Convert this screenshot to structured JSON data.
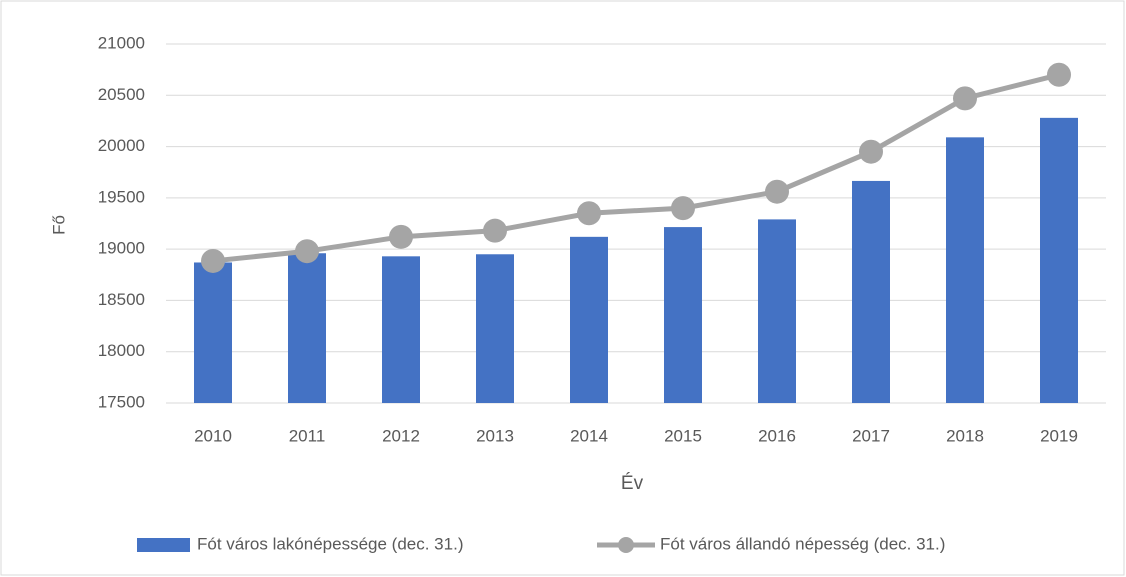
{
  "chart_data": {
    "type": "combo",
    "x_label": "Év",
    "y_label": "Fő",
    "categories": [
      "2010",
      "2011",
      "2012",
      "2013",
      "2014",
      "2015",
      "2016",
      "2017",
      "2018",
      "2019"
    ],
    "series": [
      {
        "name": "Fót város lakónépessége  (dec. 31.)",
        "type": "bar",
        "color": "#4472c4",
        "values": [
          18870,
          18960,
          18930,
          18950,
          19120,
          19215,
          19290,
          19665,
          20090,
          20280
        ]
      },
      {
        "name": "Fót város állandó népesség (dec. 31.)",
        "type": "line",
        "color": "#a5a5a5",
        "values": [
          18885,
          18980,
          19120,
          19180,
          19350,
          19400,
          19560,
          19950,
          20470,
          20700
        ]
      }
    ],
    "ylim": [
      17500,
      21000
    ],
    "yticks": [
      17500,
      18000,
      18500,
      19000,
      19500,
      20000,
      20500,
      21000
    ],
    "grid": true,
    "legend": "bottom"
  }
}
